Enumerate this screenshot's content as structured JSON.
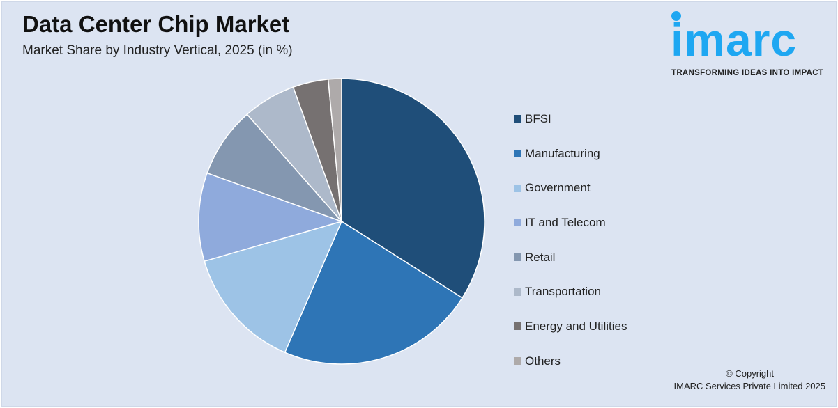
{
  "header": {
    "title": "Data Center Chip Market",
    "subtitle": "Market Share by Industry Vertical, 2025 (in %)"
  },
  "logo": {
    "text": "imarc",
    "tagline": "TRANSFORMING IDEAS INTO IMPACT",
    "color": "#1ea7f2"
  },
  "footer": {
    "copyright": "© Copyright",
    "company": "IMARC Services Private Limited 2025"
  },
  "chart_data": {
    "type": "pie",
    "title": "Data Center Chip Market",
    "subtitle": "Market Share by Industry Vertical, 2025 (in %)",
    "start_angle": "12 o'clock, clockwise",
    "legend_position": "right",
    "categories": [
      "BFSI",
      "Manufacturing",
      "Government",
      "IT and Telecom",
      "Retail",
      "Transportation",
      "Energy and Utilities",
      "Others"
    ],
    "values": [
      34,
      22.5,
      14,
      10,
      8,
      6,
      4,
      1.5
    ],
    "colors": [
      "#1f4e79",
      "#2e75b6",
      "#9dc3e6",
      "#8faadc",
      "#8497b0",
      "#adb9ca",
      "#767171",
      "#aeaaaa"
    ]
  }
}
